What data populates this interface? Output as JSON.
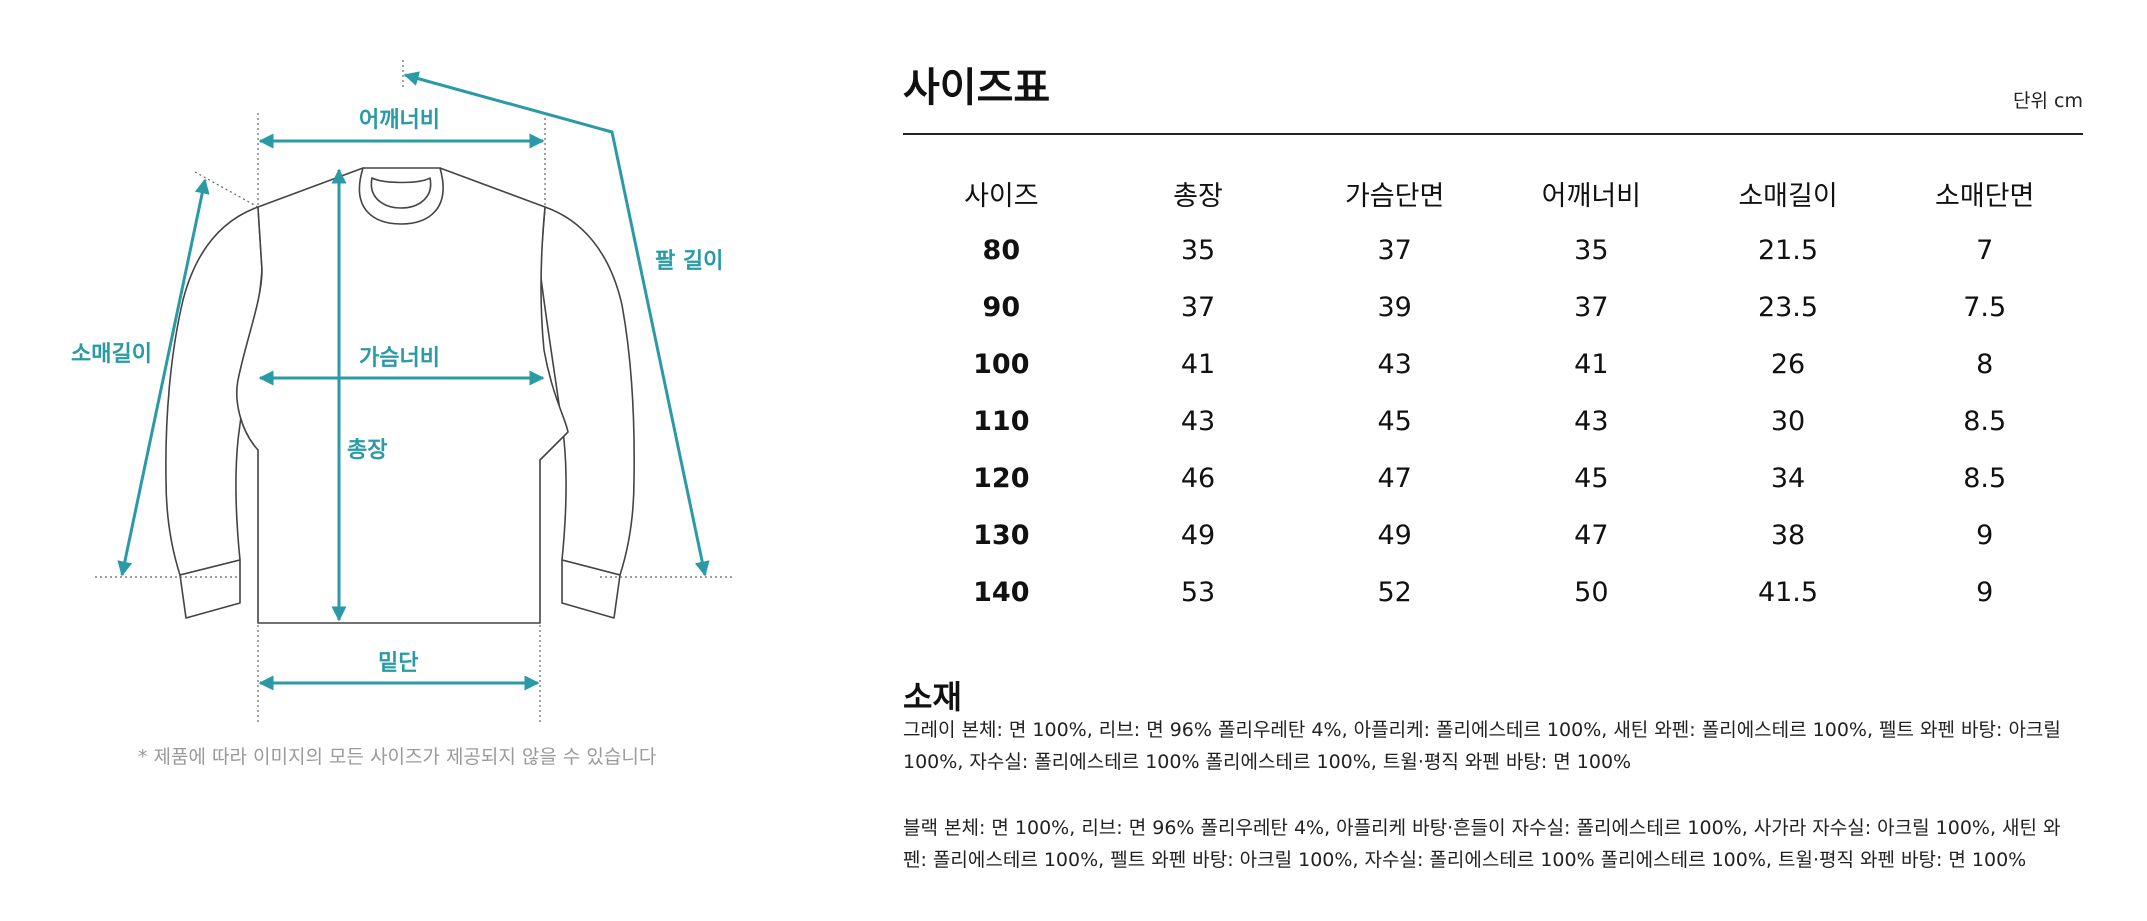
{
  "diagram": {
    "labels": {
      "shoulder": "어깨너비",
      "arm_length": "팔 길이",
      "sleeve_length": "소매길이",
      "chest": "가슴너비",
      "total_length": "총장",
      "hem": "밑단"
    },
    "accent_color": "#2a9aa6",
    "note": "* 제품에 따라 이미지의 모든 사이즈가 제공되지 않을 수 있습니다"
  },
  "size_chart": {
    "title": "사이즈표",
    "unit": "단위 cm",
    "headers": [
      "사이즈",
      "총장",
      "가슴단면",
      "어깨너비",
      "소매길이",
      "소매단면"
    ],
    "rows": [
      [
        "80",
        "35",
        "37",
        "35",
        "21.5",
        "7"
      ],
      [
        "90",
        "37",
        "39",
        "37",
        "23.5",
        "7.5"
      ],
      [
        "100",
        "41",
        "43",
        "41",
        "26",
        "8"
      ],
      [
        "110",
        "43",
        "45",
        "43",
        "30",
        "8.5"
      ],
      [
        "120",
        "46",
        "47",
        "45",
        "34",
        "8.5"
      ],
      [
        "130",
        "49",
        "49",
        "47",
        "38",
        "9"
      ],
      [
        "140",
        "53",
        "52",
        "50",
        "41.5",
        "9"
      ]
    ]
  },
  "materials": {
    "title": "소재",
    "gray": "그레이 본체: 면 100%, 리브: 면 96% 폴리우레탄 4%, 아플리케: 폴리에스테르 100%, 새틴 와펜: 폴리에스테르 100%, 펠트 와펜 바탕: 아크릴 100%, 자수실: 폴리에스테르 100% 폴리에스테르 100%, 트윌·평직 와펜 바탕: 면 100%",
    "black": "블랙 본체: 면 100%, 리브: 면 96% 폴리우레탄 4%, 아플리케 바탕·흔들이 자수실: 폴리에스테르 100%, 사가라 자수실: 아크릴 100%, 새틴 와펜: 폴리에스테르 100%, 펠트 와펜 바탕: 아크릴 100%, 자수실: 폴리에스테르 100% 폴리에스테르 100%, 트윌·평직 와펜 바탕: 면 100%"
  }
}
